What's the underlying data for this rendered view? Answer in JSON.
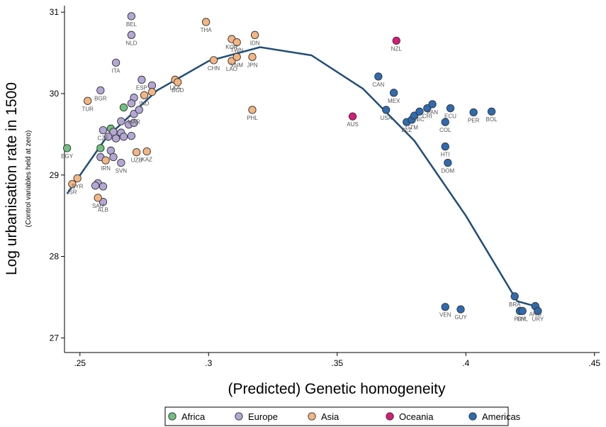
{
  "chart_data": {
    "type": "scatter",
    "title": "",
    "xlabel": "(Predicted) Genetic homogeneity",
    "ylabel": "Log urbanisation rate in 1500",
    "ylabel_note": "(Control variables held at zero)",
    "xlim": [
      0.244,
      0.452
    ],
    "ylim": [
      26.82,
      31.08
    ],
    "x_ticks": [
      0.25,
      0.3,
      0.35,
      0.4,
      0.45
    ],
    "x_tick_labels": [
      ".25",
      ".3",
      ".35",
      ".4",
      ".45"
    ],
    "y_ticks": [
      27,
      28,
      29,
      30,
      31
    ],
    "y_tick_labels": [
      "27",
      "28",
      "29",
      "30",
      "31"
    ],
    "grid": false,
    "legend_position": "bottom",
    "fit_line": {
      "type": "quadratic",
      "x": [
        0.245,
        0.26,
        0.28,
        0.3,
        0.32,
        0.34,
        0.36,
        0.38,
        0.4,
        0.42,
        0.428
      ],
      "y": [
        28.77,
        29.45,
        30.04,
        30.4,
        30.57,
        30.47,
        30.06,
        29.42,
        28.5,
        27.45,
        27.38
      ]
    },
    "series": [
      {
        "name": "Africa",
        "color": "#6fbf7e",
        "points": [
          {
            "x": 0.245,
            "y": 29.33,
            "label": "EGY"
          },
          {
            "x": 0.258,
            "y": 29.33,
            "label": ""
          },
          {
            "x": 0.262,
            "y": 29.57,
            "label": ""
          },
          {
            "x": 0.267,
            "y": 29.83,
            "label": ""
          }
        ]
      },
      {
        "name": "Europe",
        "color": "#b4a7d6",
        "points": [
          {
            "x": 0.27,
            "y": 30.95,
            "label": "BEL"
          },
          {
            "x": 0.27,
            "y": 30.72,
            "label": "NLD"
          },
          {
            "x": 0.264,
            "y": 30.38,
            "label": "ITA"
          },
          {
            "x": 0.258,
            "y": 30.04,
            "label": "BGR"
          },
          {
            "x": 0.274,
            "y": 30.17,
            "label": "ESP"
          },
          {
            "x": 0.278,
            "y": 30.1,
            "label": ""
          },
          {
            "x": 0.271,
            "y": 29.95,
            "label": ""
          },
          {
            "x": 0.27,
            "y": 29.88,
            "label": ""
          },
          {
            "x": 0.271,
            "y": 29.75,
            "label": "MAR"
          },
          {
            "x": 0.273,
            "y": 29.8,
            "label": ""
          },
          {
            "x": 0.259,
            "y": 29.55,
            "label": "CZE"
          },
          {
            "x": 0.263,
            "y": 29.53,
            "label": ""
          },
          {
            "x": 0.266,
            "y": 29.66,
            "label": ""
          },
          {
            "x": 0.269,
            "y": 29.62,
            "label": ""
          },
          {
            "x": 0.271,
            "y": 29.64,
            "label": ""
          },
          {
            "x": 0.266,
            "y": 29.52,
            "label": ""
          },
          {
            "x": 0.264,
            "y": 29.45,
            "label": ""
          },
          {
            "x": 0.267,
            "y": 29.47,
            "label": ""
          },
          {
            "x": 0.27,
            "y": 29.48,
            "label": ""
          },
          {
            "x": 0.261,
            "y": 29.47,
            "label": ""
          },
          {
            "x": 0.262,
            "y": 29.3,
            "label": ""
          },
          {
            "x": 0.258,
            "y": 29.22,
            "label": ""
          },
          {
            "x": 0.263,
            "y": 29.22,
            "label": ""
          },
          {
            "x": 0.266,
            "y": 29.15,
            "label": "SVN"
          },
          {
            "x": 0.257,
            "y": 28.9,
            "label": ""
          },
          {
            "x": 0.256,
            "y": 28.87,
            "label": ""
          },
          {
            "x": 0.259,
            "y": 28.86,
            "label": ""
          },
          {
            "x": 0.259,
            "y": 28.67,
            "label": "ALB"
          }
        ]
      },
      {
        "name": "Asia",
        "color": "#f3b582",
        "points": [
          {
            "x": 0.299,
            "y": 30.88,
            "label": "THA"
          },
          {
            "x": 0.309,
            "y": 30.67,
            "label": "KOR"
          },
          {
            "x": 0.311,
            "y": 30.63,
            "label": "TWN"
          },
          {
            "x": 0.318,
            "y": 30.72,
            "label": "IDN"
          },
          {
            "x": 0.302,
            "y": 30.41,
            "label": "CHN"
          },
          {
            "x": 0.309,
            "y": 30.4,
            "label": "LAO"
          },
          {
            "x": 0.311,
            "y": 30.45,
            "label": "VNM"
          },
          {
            "x": 0.317,
            "y": 30.45,
            "label": "JPN"
          },
          {
            "x": 0.317,
            "y": 29.8,
            "label": "PHL"
          },
          {
            "x": 0.253,
            "y": 29.91,
            "label": "TUR"
          },
          {
            "x": 0.287,
            "y": 30.17,
            "label": "LKA"
          },
          {
            "x": 0.288,
            "y": 30.14,
            "label": "BGD"
          },
          {
            "x": 0.278,
            "y": 30.02,
            "label": ""
          },
          {
            "x": 0.275,
            "y": 29.98,
            "label": "IND"
          },
          {
            "x": 0.272,
            "y": 29.28,
            "label": "UZB"
          },
          {
            "x": 0.276,
            "y": 29.29,
            "label": "KAZ"
          },
          {
            "x": 0.26,
            "y": 29.18,
            "label": "IRN"
          },
          {
            "x": 0.249,
            "y": 28.96,
            "label": "SYR"
          },
          {
            "x": 0.247,
            "y": 28.89,
            "label": "ISR"
          },
          {
            "x": 0.257,
            "y": 28.72,
            "label": "SAU"
          }
        ]
      },
      {
        "name": "Oceania",
        "color": "#d81b7a",
        "points": [
          {
            "x": 0.373,
            "y": 30.65,
            "label": "NZL"
          },
          {
            "x": 0.356,
            "y": 29.72,
            "label": "AUS"
          }
        ]
      },
      {
        "name": "Americas",
        "color": "#2e6bb0",
        "points": [
          {
            "x": 0.366,
            "y": 30.21,
            "label": "CAN"
          },
          {
            "x": 0.372,
            "y": 30.01,
            "label": "MEX"
          },
          {
            "x": 0.369,
            "y": 29.8,
            "label": "USA"
          },
          {
            "x": 0.377,
            "y": 29.65,
            "label": "BLZ"
          },
          {
            "x": 0.379,
            "y": 29.68,
            "label": "GTM"
          },
          {
            "x": 0.38,
            "y": 29.73,
            "label": ""
          },
          {
            "x": 0.382,
            "y": 29.78,
            "label": "NIC"
          },
          {
            "x": 0.385,
            "y": 29.82,
            "label": "CRI"
          },
          {
            "x": 0.387,
            "y": 29.87,
            "label": "PAN"
          },
          {
            "x": 0.394,
            "y": 29.82,
            "label": "ECU"
          },
          {
            "x": 0.392,
            "y": 29.65,
            "label": "COL"
          },
          {
            "x": 0.403,
            "y": 29.77,
            "label": "PER"
          },
          {
            "x": 0.41,
            "y": 29.78,
            "label": "BOL"
          },
          {
            "x": 0.392,
            "y": 29.35,
            "label": "HTI"
          },
          {
            "x": 0.393,
            "y": 29.15,
            "label": "DOM"
          },
          {
            "x": 0.392,
            "y": 27.38,
            "label": "VEN"
          },
          {
            "x": 0.398,
            "y": 27.35,
            "label": "GUY"
          },
          {
            "x": 0.419,
            "y": 27.51,
            "label": "BRA"
          },
          {
            "x": 0.421,
            "y": 27.33,
            "label": "PRY"
          },
          {
            "x": 0.422,
            "y": 27.33,
            "label": "CHL"
          },
          {
            "x": 0.427,
            "y": 27.39,
            "label": "ARG"
          },
          {
            "x": 0.428,
            "y": 27.33,
            "label": "URY"
          }
        ]
      }
    ]
  }
}
